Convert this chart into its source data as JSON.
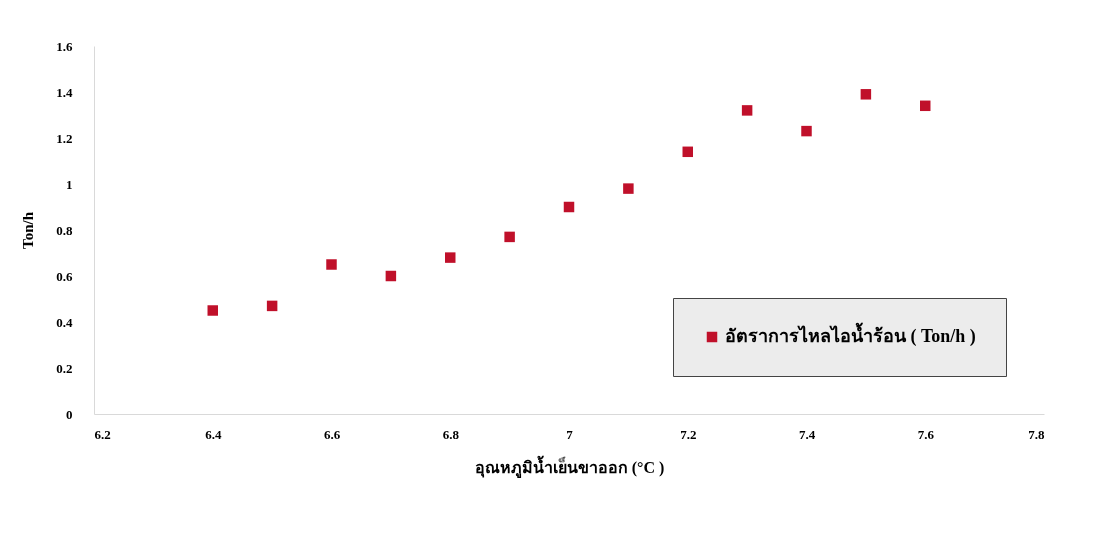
{
  "chart_data": {
    "type": "scatter",
    "xlabel": "อุณหภูมิน้ำเย็นขาออก (°C )",
    "ylabel": "Ton/h",
    "x": [
      6.4,
      6.5,
      6.6,
      6.7,
      6.8,
      6.9,
      7.0,
      7.1,
      7.2,
      7.3,
      7.4,
      7.5,
      7.6
    ],
    "series": [
      {
        "name": "อัตราการไหลไอน้ำร้อน ( Ton/h )",
        "color": "#c0102a",
        "values": [
          0.45,
          0.47,
          0.65,
          0.6,
          0.68,
          0.77,
          0.9,
          0.98,
          1.14,
          1.32,
          1.23,
          1.39,
          1.34
        ]
      }
    ],
    "xlim": [
      6.2,
      7.8
    ],
    "xticks": [
      6.2,
      6.4,
      6.6,
      6.8,
      7,
      7.2,
      7.4,
      7.6,
      7.8
    ],
    "ylim": [
      0,
      1.6
    ],
    "yticks": [
      0,
      0.2,
      0.4,
      0.6,
      0.8,
      1,
      1.2,
      1.4,
      1.6
    ],
    "marker": "square",
    "legend": "bottom right",
    "grid": false
  }
}
